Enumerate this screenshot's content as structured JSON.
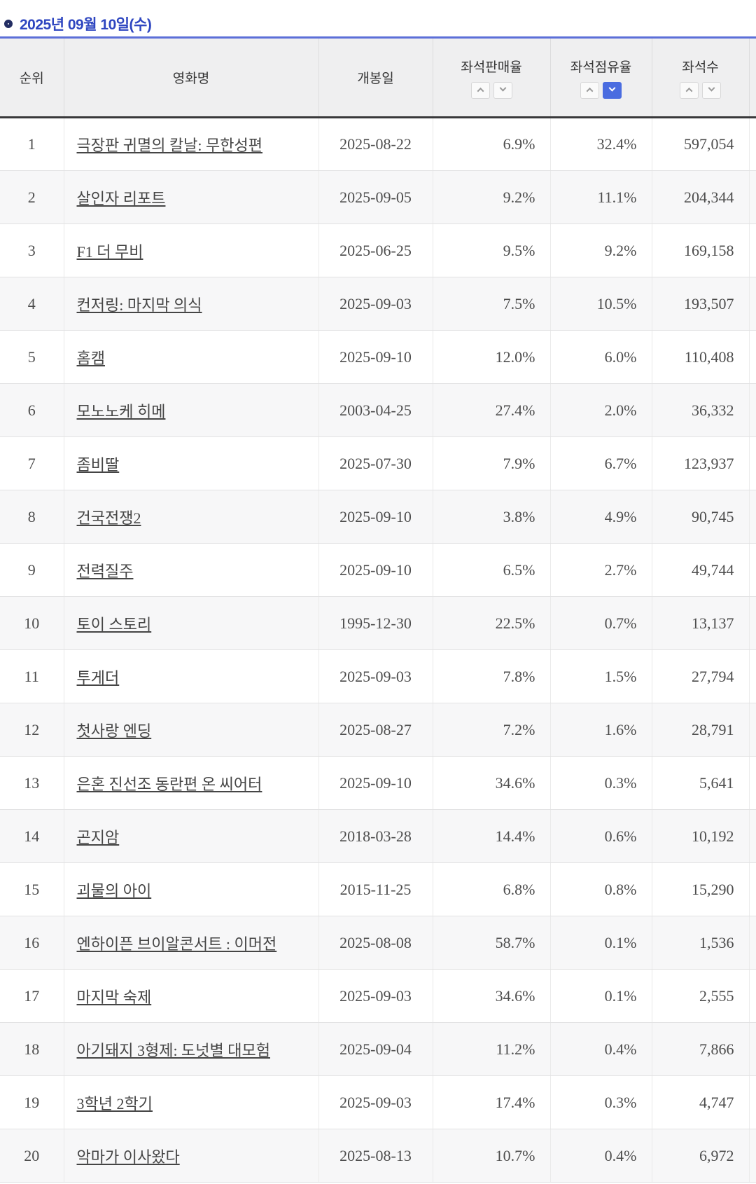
{
  "page": {
    "date_title": "2025년 09월 10일(수)"
  },
  "colors": {
    "title_blue": "#2e46c0",
    "table_top_border_blue": "#5c6fd8",
    "active_sort_blue": "#4a6ce0",
    "header_bg": "#efeff0",
    "even_row_bg": "#f7f7f8"
  },
  "table": {
    "columns": [
      {
        "label": "순위",
        "sortable": false
      },
      {
        "label": "영화명",
        "sortable": false
      },
      {
        "label": "개봉일",
        "sortable": false
      },
      {
        "label": "좌석판매율",
        "sortable": true,
        "active_sort": null
      },
      {
        "label": "좌석점유율",
        "sortable": true,
        "active_sort": "desc"
      },
      {
        "label": "좌석수",
        "sortable": true,
        "active_sort": null
      }
    ],
    "rows": [
      {
        "rank": "1",
        "title": "극장판 귀멸의 칼날: 무한성편",
        "release_date": "2025-08-22",
        "seat_sales_rate": "6.9%",
        "seat_share_rate": "32.4%",
        "seat_count": "597,054"
      },
      {
        "rank": "2",
        "title": "살인자 리포트",
        "release_date": "2025-09-05",
        "seat_sales_rate": "9.2%",
        "seat_share_rate": "11.1%",
        "seat_count": "204,344"
      },
      {
        "rank": "3",
        "title": "F1 더 무비",
        "release_date": "2025-06-25",
        "seat_sales_rate": "9.5%",
        "seat_share_rate": "9.2%",
        "seat_count": "169,158"
      },
      {
        "rank": "4",
        "title": "컨저링: 마지막 의식",
        "release_date": "2025-09-03",
        "seat_sales_rate": "7.5%",
        "seat_share_rate": "10.5%",
        "seat_count": "193,507"
      },
      {
        "rank": "5",
        "title": "홈캠",
        "release_date": "2025-09-10",
        "seat_sales_rate": "12.0%",
        "seat_share_rate": "6.0%",
        "seat_count": "110,408"
      },
      {
        "rank": "6",
        "title": "모노노케 히메",
        "release_date": "2003-04-25",
        "seat_sales_rate": "27.4%",
        "seat_share_rate": "2.0%",
        "seat_count": "36,332"
      },
      {
        "rank": "7",
        "title": "좀비딸",
        "release_date": "2025-07-30",
        "seat_sales_rate": "7.9%",
        "seat_share_rate": "6.7%",
        "seat_count": "123,937"
      },
      {
        "rank": "8",
        "title": "건국전쟁2",
        "release_date": "2025-09-10",
        "seat_sales_rate": "3.8%",
        "seat_share_rate": "4.9%",
        "seat_count": "90,745"
      },
      {
        "rank": "9",
        "title": "전력질주",
        "release_date": "2025-09-10",
        "seat_sales_rate": "6.5%",
        "seat_share_rate": "2.7%",
        "seat_count": "49,744"
      },
      {
        "rank": "10",
        "title": "토이 스토리",
        "release_date": "1995-12-30",
        "seat_sales_rate": "22.5%",
        "seat_share_rate": "0.7%",
        "seat_count": "13,137"
      },
      {
        "rank": "11",
        "title": "투게더",
        "release_date": "2025-09-03",
        "seat_sales_rate": "7.8%",
        "seat_share_rate": "1.5%",
        "seat_count": "27,794"
      },
      {
        "rank": "12",
        "title": "첫사랑 엔딩",
        "release_date": "2025-08-27",
        "seat_sales_rate": "7.2%",
        "seat_share_rate": "1.6%",
        "seat_count": "28,791"
      },
      {
        "rank": "13",
        "title": "은혼 진선조 동란편 온 씨어터",
        "release_date": "2025-09-10",
        "seat_sales_rate": "34.6%",
        "seat_share_rate": "0.3%",
        "seat_count": "5,641"
      },
      {
        "rank": "14",
        "title": "곤지암",
        "release_date": "2018-03-28",
        "seat_sales_rate": "14.4%",
        "seat_share_rate": "0.6%",
        "seat_count": "10,192"
      },
      {
        "rank": "15",
        "title": "괴물의 아이",
        "release_date": "2015-11-25",
        "seat_sales_rate": "6.8%",
        "seat_share_rate": "0.8%",
        "seat_count": "15,290"
      },
      {
        "rank": "16",
        "title": "엔하이픈 브이알콘서트 : 이머전",
        "release_date": "2025-08-08",
        "seat_sales_rate": "58.7%",
        "seat_share_rate": "0.1%",
        "seat_count": "1,536"
      },
      {
        "rank": "17",
        "title": "마지막 숙제",
        "release_date": "2025-09-03",
        "seat_sales_rate": "34.6%",
        "seat_share_rate": "0.1%",
        "seat_count": "2,555"
      },
      {
        "rank": "18",
        "title": "아기돼지 3형제: 도넛별 대모험",
        "release_date": "2025-09-04",
        "seat_sales_rate": "11.2%",
        "seat_share_rate": "0.4%",
        "seat_count": "7,866"
      },
      {
        "rank": "19",
        "title": "3학년 2학기",
        "release_date": "2025-09-03",
        "seat_sales_rate": "17.4%",
        "seat_share_rate": "0.3%",
        "seat_count": "4,747"
      },
      {
        "rank": "20",
        "title": "악마가 이사왔다",
        "release_date": "2025-08-13",
        "seat_sales_rate": "10.7%",
        "seat_share_rate": "0.4%",
        "seat_count": "6,972"
      }
    ]
  }
}
